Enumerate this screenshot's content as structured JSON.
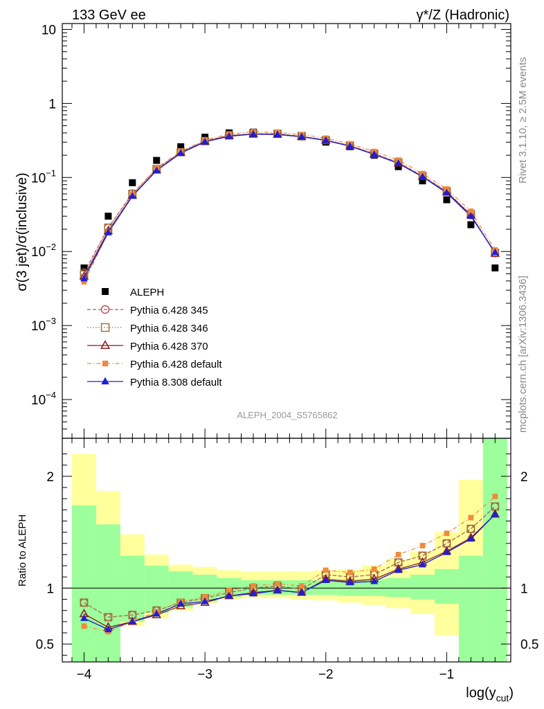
{
  "header": {
    "left": "133 GeV ee",
    "right": "γ*/Z (Hadronic)"
  },
  "side_labels": {
    "top": "Rivet 3.1.10, ≥ 2.5M events",
    "bottom": "mcplots.cern.ch [arXiv:1306.3436]"
  },
  "analysis_id": "ALEPH_2004_S5765862",
  "colors": {
    "data": "#000000",
    "p345": "#b5525a",
    "p346": "#a0743a",
    "p370": "#8b1a1a",
    "p6def": "#f08a3c",
    "p8def": "#1f1fd6",
    "band_inner": "#9cff9c",
    "band_outer": "#ffff9c"
  },
  "chart_data": [
    {
      "type": "scatter",
      "panel": "main",
      "ylabel": "σ(3 jet)/σ(inclusive)",
      "yscale": "log",
      "ylim": [
        3e-05,
        12
      ],
      "xlim": [
        -4.18,
        -0.47
      ],
      "y_ticks": [
        {
          "v": 10,
          "label": "10"
        },
        {
          "v": 1,
          "label": "1"
        },
        {
          "v": 0.1,
          "label": "10",
          "exp": "−1"
        },
        {
          "v": 0.01,
          "label": "10",
          "exp": "−2"
        },
        {
          "v": 0.001,
          "label": "10",
          "exp": "−3"
        },
        {
          "v": 0.0001,
          "label": "10",
          "exp": "−4"
        }
      ],
      "x": [
        -4.0,
        -3.8,
        -3.6,
        -3.4,
        -3.2,
        -3.0,
        -2.8,
        -2.6,
        -2.4,
        -2.2,
        -2.0,
        -1.8,
        -1.6,
        -1.4,
        -1.2,
        -1.0,
        -0.8,
        -0.6
      ],
      "series": [
        {
          "name": "ALEPH",
          "key": "data",
          "marker": "square",
          "line": "none",
          "values": [
            0.006,
            0.03,
            0.085,
            0.17,
            0.26,
            0.35,
            0.4,
            0.41,
            0.39,
            0.37,
            0.3,
            0.26,
            0.2,
            0.14,
            0.09,
            0.05,
            0.023,
            0.006
          ]
        },
        {
          "name": "Pythia 6.428 345",
          "key": "p345",
          "marker": "circle-open",
          "line": "dashed",
          "values": [
            0.0052,
            0.021,
            0.061,
            0.13,
            0.22,
            0.31,
            0.37,
            0.39,
            0.39,
            0.36,
            0.32,
            0.27,
            0.21,
            0.16,
            0.105,
            0.065,
            0.031,
            0.0095
          ]
        },
        {
          "name": "Pythia 6.428 346",
          "key": "p346",
          "marker": "square-open",
          "line": "dotted",
          "values": [
            0.0049,
            0.021,
            0.06,
            0.13,
            0.22,
            0.31,
            0.37,
            0.39,
            0.39,
            0.36,
            0.32,
            0.27,
            0.21,
            0.16,
            0.105,
            0.065,
            0.032,
            0.0096
          ]
        },
        {
          "name": "Pythia 6.428 370",
          "key": "p370",
          "marker": "triangle-open",
          "line": "solid",
          "values": [
            0.0046,
            0.019,
            0.057,
            0.125,
            0.215,
            0.305,
            0.365,
            0.385,
            0.38,
            0.355,
            0.315,
            0.265,
            0.205,
            0.155,
            0.102,
            0.063,
            0.031,
            0.0094
          ]
        },
        {
          "name": "Pythia 6.428 default",
          "key": "p6def",
          "marker": "square-small",
          "line": "dashdot",
          "values": [
            0.0039,
            0.018,
            0.059,
            0.135,
            0.225,
            0.32,
            0.385,
            0.415,
            0.405,
            0.38,
            0.34,
            0.285,
            0.225,
            0.172,
            0.113,
            0.07,
            0.035,
            0.0105
          ]
        },
        {
          "name": "Pythia 8.308 default",
          "key": "p8def",
          "marker": "triangle",
          "line": "solid",
          "values": [
            0.0043,
            0.018,
            0.056,
            0.124,
            0.213,
            0.303,
            0.36,
            0.385,
            0.38,
            0.355,
            0.318,
            0.265,
            0.205,
            0.155,
            0.102,
            0.062,
            0.03,
            0.0097
          ]
        }
      ]
    },
    {
      "type": "scatter",
      "panel": "ratio",
      "ylabel": "Ratio to ALEPH",
      "xlabel": "log(y",
      "xlabel_sub": "cut",
      "xlabel_close": ")",
      "ylim": [
        0.34,
        2.34
      ],
      "xlim": [
        -4.18,
        -0.47
      ],
      "y_ticks": [
        {
          "v": 2,
          "label": "2"
        },
        {
          "v": 1,
          "label": "1"
        },
        {
          "v": 0.5,
          "label": "0.5"
        }
      ],
      "x_ticks": [
        {
          "v": -4,
          "label": "−4"
        },
        {
          "v": -3,
          "label": "−3"
        },
        {
          "v": -2,
          "label": "−2"
        },
        {
          "v": -1,
          "label": "−1"
        }
      ],
      "bins": [
        {
          "x": [
            -4.1,
            -3.9
          ],
          "inner": [
            0.3,
            1.74
          ],
          "outer": [
            0.3,
            2.2
          ]
        },
        {
          "x": [
            -3.9,
            -3.7
          ],
          "inner": [
            0.3,
            1.57
          ],
          "outer": [
            0.3,
            1.87
          ]
        },
        {
          "x": [
            -3.7,
            -3.5
          ],
          "inner": [
            0.7,
            1.29
          ],
          "outer": [
            0.66,
            1.48
          ]
        },
        {
          "x": [
            -3.5,
            -3.3
          ],
          "inner": [
            0.78,
            1.2
          ],
          "outer": [
            0.73,
            1.3
          ]
        },
        {
          "x": [
            -3.3,
            -3.1
          ],
          "inner": [
            0.83,
            1.15
          ],
          "outer": [
            0.8,
            1.21
          ]
        },
        {
          "x": [
            -3.1,
            -2.9
          ],
          "inner": [
            0.88,
            1.12
          ],
          "outer": [
            0.86,
            1.19
          ]
        },
        {
          "x": [
            -2.9,
            -2.7
          ],
          "inner": [
            0.92,
            1.09
          ],
          "outer": [
            0.9,
            1.16
          ]
        },
        {
          "x": [
            -2.7,
            -2.5
          ],
          "inner": [
            0.94,
            1.07
          ],
          "outer": [
            0.91,
            1.15
          ]
        },
        {
          "x": [
            -2.5,
            -2.3
          ],
          "inner": [
            0.94,
            1.07
          ],
          "outer": [
            0.91,
            1.15
          ]
        },
        {
          "x": [
            -2.3,
            -2.1
          ],
          "inner": [
            0.94,
            1.07
          ],
          "outer": [
            0.9,
            1.15
          ]
        },
        {
          "x": [
            -2.1,
            -1.9
          ],
          "inner": [
            0.94,
            1.07
          ],
          "outer": [
            0.89,
            1.16
          ]
        },
        {
          "x": [
            -1.9,
            -1.7
          ],
          "inner": [
            0.93,
            1.08
          ],
          "outer": [
            0.87,
            1.17
          ]
        },
        {
          "x": [
            -1.7,
            -1.5
          ],
          "inner": [
            0.93,
            1.08
          ],
          "outer": [
            0.85,
            1.2
          ]
        },
        {
          "x": [
            -1.5,
            -1.3
          ],
          "inner": [
            0.92,
            1.09
          ],
          "outer": [
            0.82,
            1.26
          ]
        },
        {
          "x": [
            -1.3,
            -1.1
          ],
          "inner": [
            0.9,
            1.12
          ],
          "outer": [
            0.77,
            1.33
          ]
        },
        {
          "x": [
            -1.1,
            -0.9
          ],
          "inner": [
            0.86,
            1.17
          ],
          "outer": [
            0.58,
            1.5
          ]
        },
        {
          "x": [
            -0.9,
            -0.7
          ],
          "inner": [
            0.3,
            1.29
          ],
          "outer": [
            0.3,
            1.97
          ]
        },
        {
          "x": [
            -0.7,
            -0.5
          ],
          "inner": [
            0.3,
            2.34
          ],
          "outer": [
            0.3,
            2.34
          ]
        }
      ],
      "x": [
        -4.0,
        -3.8,
        -3.6,
        -3.4,
        -3.2,
        -3.0,
        -2.8,
        -2.6,
        -2.4,
        -2.2,
        -2.0,
        -1.8,
        -1.6,
        -1.4,
        -1.2,
        -1.0,
        -0.8,
        -0.6
      ],
      "series": [
        {
          "name": "Pythia 6.428 345",
          "key": "p345",
          "marker": "circle-open",
          "line": "dashed",
          "values": [
            0.87,
            0.74,
            0.76,
            0.8,
            0.87,
            0.91,
            0.96,
            1.0,
            1.02,
            0.99,
            1.12,
            1.1,
            1.12,
            1.23,
            1.29,
            1.4,
            1.53,
            1.73
          ]
        },
        {
          "name": "Pythia 6.428 346",
          "key": "p346",
          "marker": "square-open",
          "line": "dotted",
          "values": [
            0.87,
            0.74,
            0.76,
            0.8,
            0.87,
            0.91,
            0.96,
            1.0,
            1.02,
            0.99,
            1.12,
            1.1,
            1.12,
            1.23,
            1.29,
            1.4,
            1.53,
            1.73
          ]
        },
        {
          "name": "Pythia 6.428 370",
          "key": "p370",
          "marker": "triangle-open",
          "line": "solid",
          "values": [
            0.77,
            0.65,
            0.7,
            0.76,
            0.84,
            0.87,
            0.93,
            0.96,
            0.98,
            0.96,
            1.08,
            1.06,
            1.08,
            1.17,
            1.23,
            1.33,
            1.45,
            1.66
          ]
        },
        {
          "name": "Pythia 6.428 default",
          "key": "p6def",
          "marker": "square-small",
          "line": "dashdot",
          "values": [
            0.66,
            0.61,
            0.7,
            0.79,
            0.88,
            0.92,
            0.98,
            1.02,
            1.04,
            1.02,
            1.16,
            1.14,
            1.17,
            1.3,
            1.38,
            1.49,
            1.63,
            1.82
          ]
        },
        {
          "name": "Pythia 8.308 default",
          "key": "p8def",
          "marker": "triangle",
          "line": "solid",
          "values": [
            0.73,
            0.63,
            0.7,
            0.77,
            0.86,
            0.88,
            0.93,
            0.95,
            0.98,
            0.96,
            1.07,
            1.05,
            1.06,
            1.16,
            1.21,
            1.32,
            1.44,
            1.66
          ]
        }
      ]
    }
  ]
}
